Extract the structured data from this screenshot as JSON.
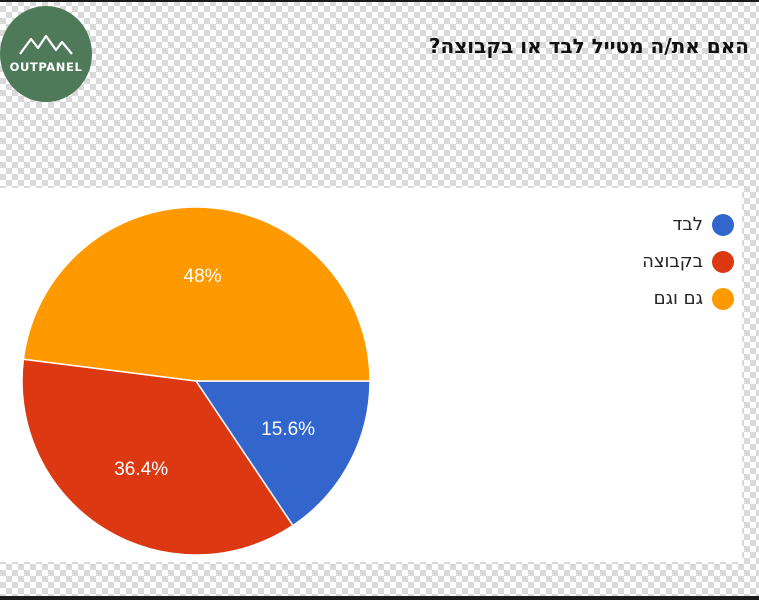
{
  "logo": {
    "text": "OUTPANEL"
  },
  "title": "האם את/ה מטייל לבד או בקבוצה?",
  "chart_data": {
    "type": "pie",
    "categories": [
      "לבד",
      "בקבוצה",
      "גם וגם"
    ],
    "values": [
      15.6,
      36.4,
      48
    ],
    "value_labels": [
      "15.6%",
      "36.4%",
      "48%"
    ],
    "colors": [
      "#3366cc",
      "#dc3912",
      "#ff9900"
    ],
    "legend_position": "top-right"
  }
}
